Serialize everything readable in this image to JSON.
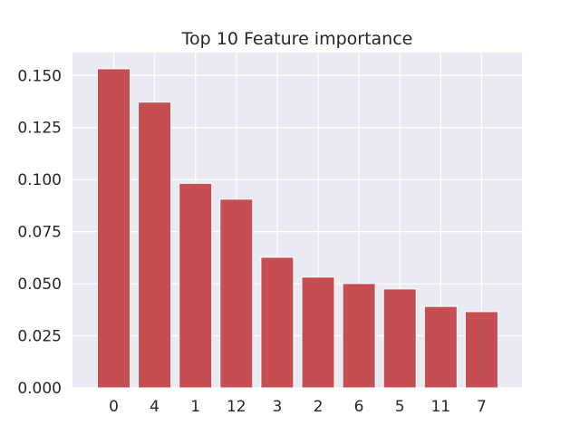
{
  "chart_data": {
    "type": "bar",
    "title": "Top 10 Feature importance",
    "xlabel": "",
    "ylabel": "",
    "categories": [
      "0",
      "4",
      "1",
      "12",
      "3",
      "2",
      "6",
      "5",
      "11",
      "7"
    ],
    "values": [
      0.1532,
      0.1372,
      0.0982,
      0.0906,
      0.0627,
      0.0532,
      0.0501,
      0.0475,
      0.0391,
      0.0366
    ],
    "ylim": [
      0,
      0.161
    ],
    "yticks": [
      "0.000",
      "0.025",
      "0.050",
      "0.075",
      "0.100",
      "0.125",
      "0.150"
    ],
    "grid": true,
    "legend": "none",
    "colors": {
      "bar": "#c44e52",
      "background": "#eaeaf2",
      "grid": "#ffffff",
      "text": "#262626"
    }
  }
}
